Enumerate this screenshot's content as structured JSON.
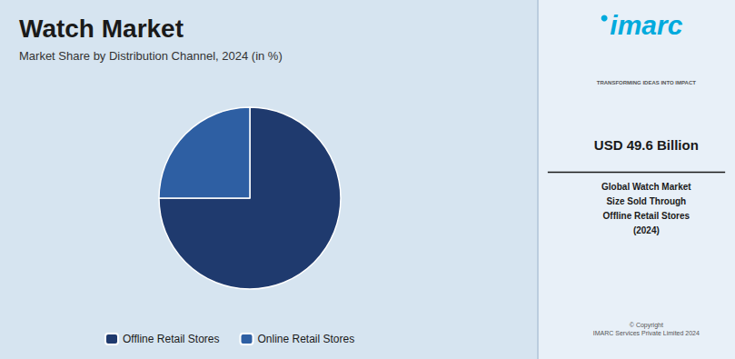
{
  "chart_data": {
    "type": "pie",
    "title": "Watch Market",
    "subtitle": "Market Share by Distribution Channel, 2024 (in %)",
    "categories": [
      "Offline Retail Stores",
      "Online Retail Stores"
    ],
    "values": [
      75,
      25
    ],
    "colors": [
      "#1f3a6e",
      "#2e5fa3"
    ],
    "legend": "bottom",
    "annotations": [
      "imarc",
      "TRANSFORMING IDEAS INTO IMPACT",
      "USD 49.6 Billion",
      "Global Watch Market\nSize Sold Through\nOffline Retail Stores\n(2024)",
      "© Copyright\nIMARC Services Private Limited 2024"
    ]
  }
}
